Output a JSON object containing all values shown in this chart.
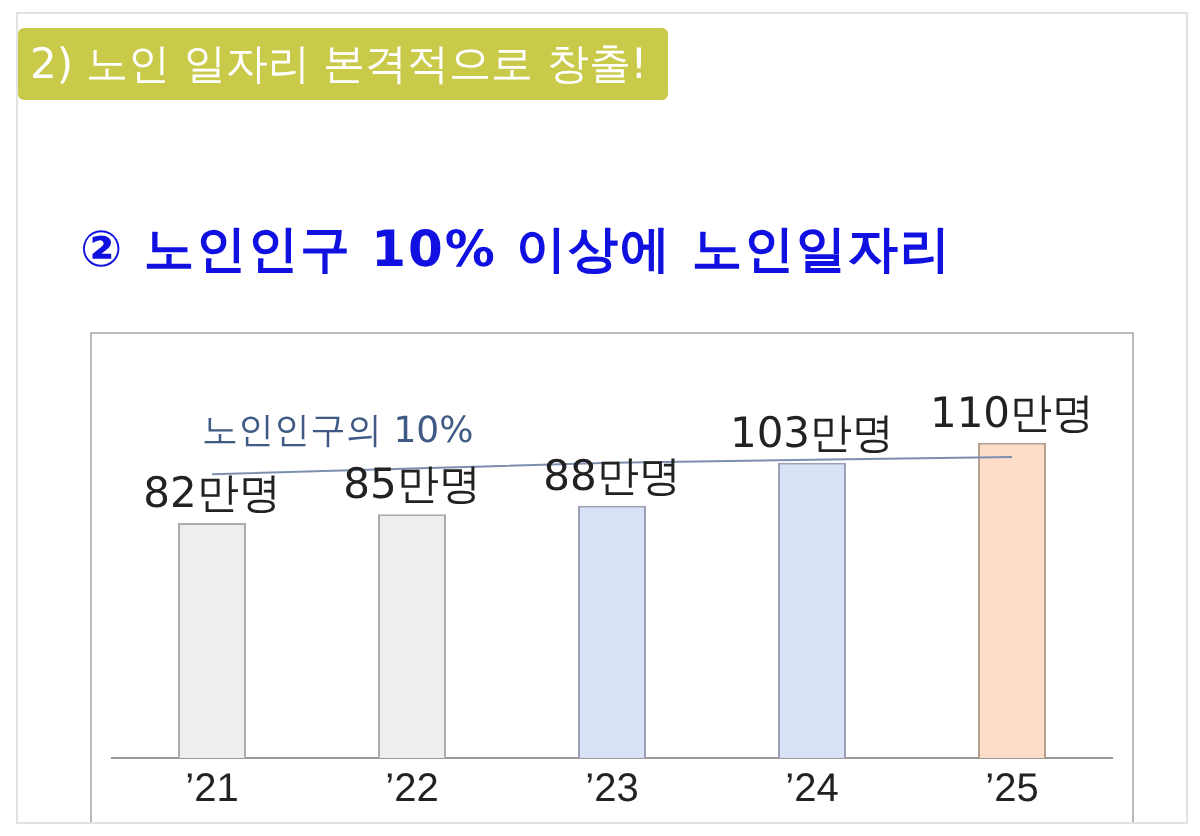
{
  "chart_data": {
    "type": "bar",
    "title": "2) 노인 일자리 본격적으로 창출!",
    "subtitle": "② 노인인구 10% 이상에 노인일자리",
    "categories": [
      "’21",
      "’22",
      "’23",
      "’24",
      "’25"
    ],
    "values": [
      82,
      85,
      88,
      103,
      110
    ],
    "colors": [
      "#eeeeee",
      "#eeeeee",
      "#d9e1f7",
      "#d9e1f7",
      "#fddcc8"
    ],
    "value_labels": [
      "82만명",
      "85만명",
      "88만명",
      "103만명",
      "110만명"
    ],
    "series": [
      {
        "type": "line",
        "name": "노인인구의 10%",
        "color": "#7d8fb0",
        "values": [
          99,
          101,
          103,
          104,
          105
        ]
      }
    ],
    "legend": false,
    "grid": false,
    "marker": "none"
  }
}
